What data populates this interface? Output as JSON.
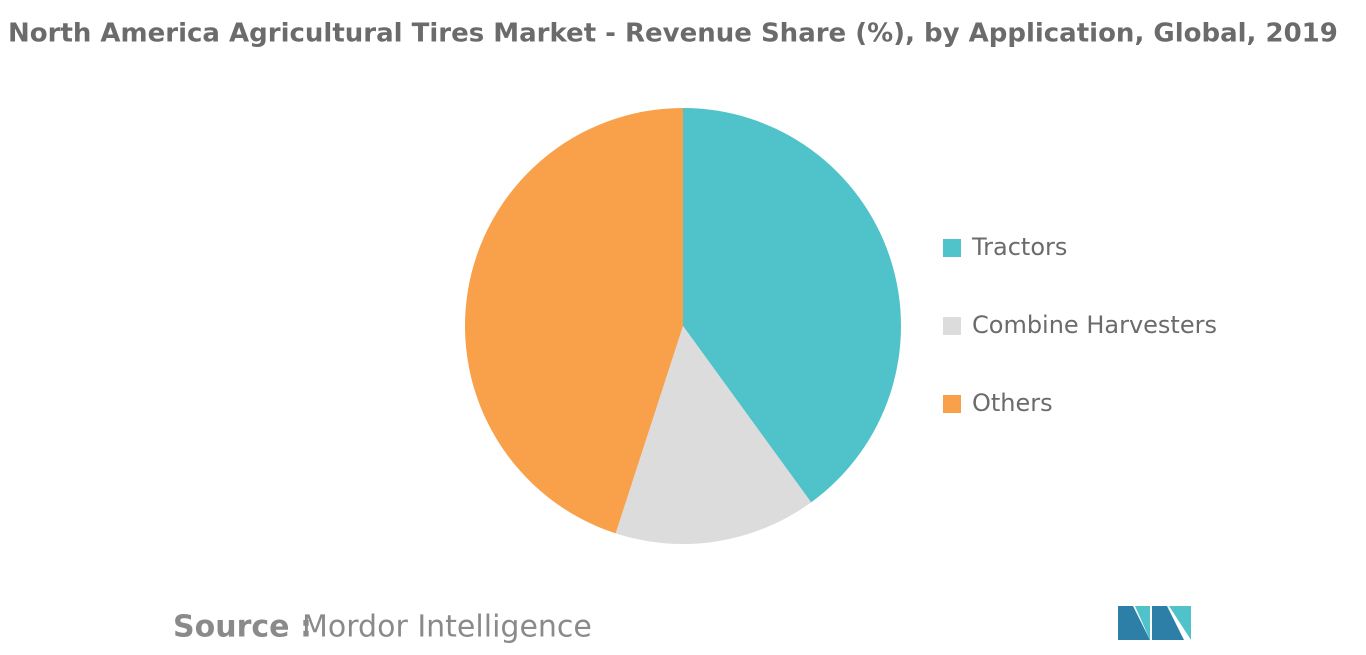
{
  "chart_data": {
    "type": "pie",
    "title": "North America Agricultural Tires Market - Revenue Share (%), by Application, Global, 2019",
    "categories": [
      "Tractors",
      "Combine Harvesters",
      "Others"
    ],
    "values": [
      40,
      15,
      45
    ],
    "colors": [
      "#4fc3c9",
      "#dcdcdc",
      "#f9a04a"
    ],
    "legend": "right"
  },
  "source": {
    "label": "Source :",
    "text": "Mordor Intelligence"
  }
}
